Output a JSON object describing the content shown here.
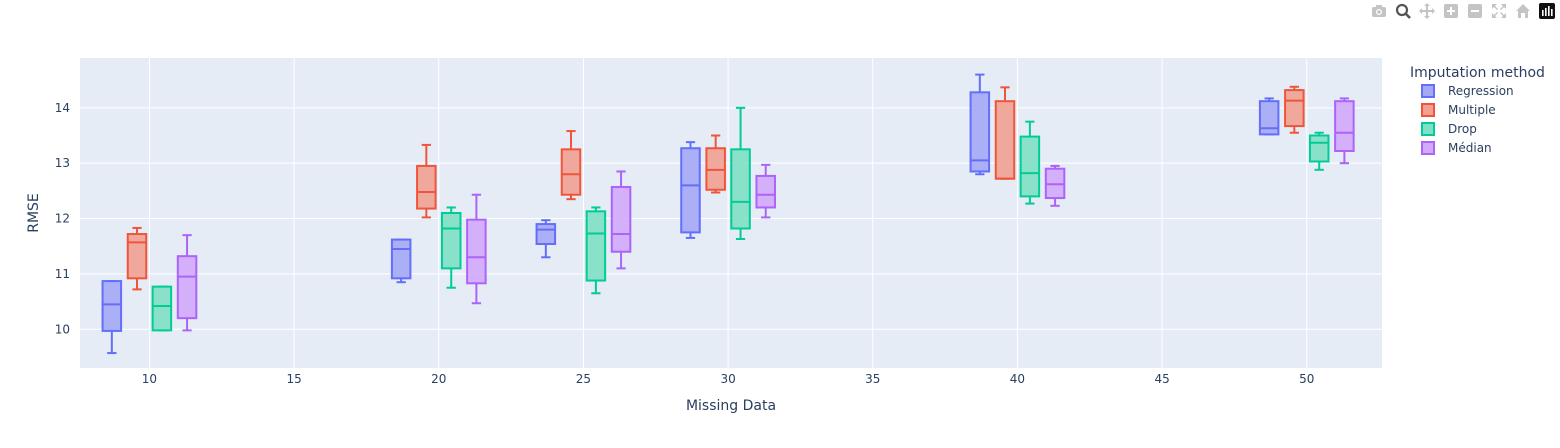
{
  "modebar": {
    "buttons": [
      "camera-icon",
      "zoom-icon",
      "pan-icon",
      "zoom-in-icon",
      "zoom-out-icon",
      "autoscale-icon",
      "home-icon",
      "plotly-logo-icon"
    ]
  },
  "chart_data": {
    "type": "box",
    "xlabel": "Missing Data",
    "ylabel": "RMSE",
    "xlim": [
      7.6,
      52.6
    ],
    "ylim": [
      9.3,
      14.9
    ],
    "xticks": [
      10,
      15,
      20,
      25,
      30,
      35,
      40,
      45,
      50
    ],
    "yticks": [
      10,
      11,
      12,
      13,
      14
    ],
    "legend_title": "Imputation method",
    "legend_position": "top-right",
    "plot_bgcolor": "#e5ecf6",
    "grid": true,
    "categories": [
      10,
      20,
      25,
      30,
      40,
      50
    ],
    "series": [
      {
        "name": "Regression",
        "color": "#636efa",
        "fill": "#a3a9f6",
        "offset": -1.3,
        "boxes": [
          {
            "x": 10,
            "min": 9.57,
            "q1": 9.97,
            "median": 10.45,
            "q3": 10.87,
            "max": 10.87
          },
          {
            "x": 20,
            "min": 10.85,
            "q1": 10.92,
            "median": 11.45,
            "q3": 11.62,
            "max": 11.62
          },
          {
            "x": 25,
            "min": 11.3,
            "q1": 11.54,
            "median": 11.8,
            "q3": 11.9,
            "max": 11.97
          },
          {
            "x": 30,
            "min": 11.65,
            "q1": 11.75,
            "median": 12.6,
            "q3": 13.27,
            "max": 13.38
          },
          {
            "x": 40,
            "min": 12.8,
            "q1": 12.85,
            "median": 13.05,
            "q3": 14.28,
            "max": 14.6
          },
          {
            "x": 50,
            "min": 13.52,
            "q1": 13.52,
            "median": 13.63,
            "q3": 14.12,
            "max": 14.17
          }
        ]
      },
      {
        "name": "Multiple",
        "color": "#ef553b",
        "fill": "#f0a191",
        "offset": -0.43,
        "boxes": [
          {
            "x": 10,
            "min": 10.72,
            "q1": 10.92,
            "median": 11.57,
            "q3": 11.72,
            "max": 11.83
          },
          {
            "x": 20,
            "min": 12.02,
            "q1": 12.18,
            "median": 12.48,
            "q3": 12.95,
            "max": 13.33
          },
          {
            "x": 25,
            "min": 12.35,
            "q1": 12.43,
            "median": 12.8,
            "q3": 13.25,
            "max": 13.58
          },
          {
            "x": 30,
            "min": 12.47,
            "q1": 12.52,
            "median": 12.88,
            "q3": 13.27,
            "max": 13.5
          },
          {
            "x": 40,
            "min": 12.72,
            "q1": 12.72,
            "median": 12.72,
            "q3": 14.12,
            "max": 14.37
          },
          {
            "x": 50,
            "min": 13.55,
            "q1": 13.67,
            "median": 14.13,
            "q3": 14.32,
            "max": 14.38
          }
        ]
      },
      {
        "name": "Drop",
        "color": "#00cc96",
        "fill": "#7fe0c4",
        "offset": 0.43,
        "boxes": [
          {
            "x": 10,
            "min": 9.98,
            "q1": 9.98,
            "median": 10.42,
            "q3": 10.77,
            "max": 10.77
          },
          {
            "x": 20,
            "min": 10.75,
            "q1": 11.1,
            "median": 11.82,
            "q3": 12.1,
            "max": 12.2
          },
          {
            "x": 25,
            "min": 10.65,
            "q1": 10.88,
            "median": 11.73,
            "q3": 12.13,
            "max": 12.2
          },
          {
            "x": 30,
            "min": 11.63,
            "q1": 11.82,
            "median": 12.3,
            "q3": 13.25,
            "max": 14.0
          },
          {
            "x": 40,
            "min": 12.27,
            "q1": 12.4,
            "median": 12.82,
            "q3": 13.48,
            "max": 13.75
          },
          {
            "x": 50,
            "min": 12.88,
            "q1": 13.03,
            "median": 13.37,
            "q3": 13.5,
            "max": 13.55
          }
        ]
      },
      {
        "name": "Médian",
        "color": "#ab63fa",
        "fill": "#d2aafb",
        "offset": 1.3,
        "boxes": [
          {
            "x": 10,
            "min": 9.98,
            "q1": 10.2,
            "median": 10.95,
            "q3": 11.32,
            "max": 11.7
          },
          {
            "x": 20,
            "min": 10.47,
            "q1": 10.83,
            "median": 11.3,
            "q3": 11.98,
            "max": 12.43
          },
          {
            "x": 25,
            "min": 11.1,
            "q1": 11.4,
            "median": 11.72,
            "q3": 12.57,
            "max": 12.85
          },
          {
            "x": 30,
            "min": 12.02,
            "q1": 12.2,
            "median": 12.43,
            "q3": 12.77,
            "max": 12.97
          },
          {
            "x": 40,
            "min": 12.23,
            "q1": 12.37,
            "median": 12.62,
            "q3": 12.9,
            "max": 12.95
          },
          {
            "x": 50,
            "min": 13.0,
            "q1": 13.22,
            "median": 13.55,
            "q3": 14.12,
            "max": 14.17
          }
        ]
      }
    ]
  }
}
